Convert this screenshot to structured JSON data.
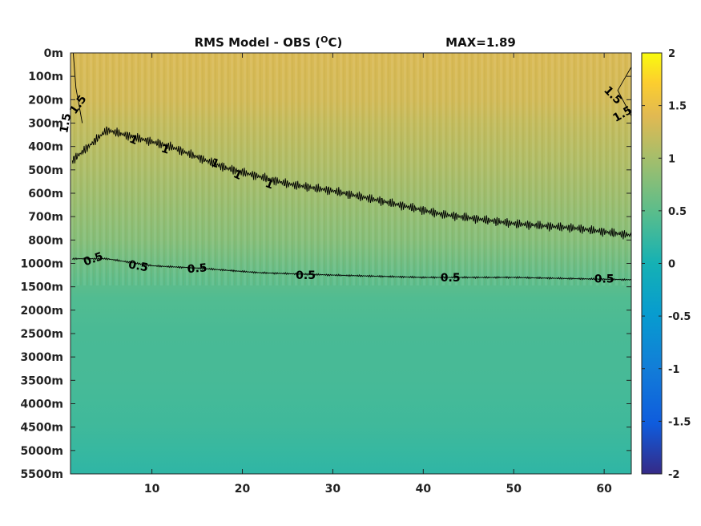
{
  "chart_data": {
    "type": "heatmap",
    "title": "RMS Model - OBS (",
    "title_sup": "O",
    "title_unit": "C)",
    "max_label": "MAX=1.89",
    "x_ticks": [
      {
        "value": 10,
        "label": "10"
      },
      {
        "value": 20,
        "label": "20"
      },
      {
        "value": 30,
        "label": "30"
      },
      {
        "value": 40,
        "label": "40"
      },
      {
        "value": 50,
        "label": "50"
      },
      {
        "value": 60,
        "label": "60"
      }
    ],
    "xlim": [
      1,
      63
    ],
    "y_levels": [
      "0m",
      "100m",
      "200m",
      "300m",
      "400m",
      "500m",
      "600m",
      "700m",
      "800m",
      "1000m",
      "1500m",
      "2000m",
      "2500m",
      "3000m",
      "3500m",
      "4000m",
      "4500m",
      "5000m",
      "5500m"
    ],
    "colorbar": {
      "min": -2,
      "max": 2,
      "ticks": [
        {
          "value": 2,
          "label": "2"
        },
        {
          "value": 1.5,
          "label": "1.5"
        },
        {
          "value": 1,
          "label": "1"
        },
        {
          "value": 0.5,
          "label": "0.5"
        },
        {
          "value": 0,
          "label": "0"
        },
        {
          "value": -0.5,
          "label": "-0.5"
        },
        {
          "value": -1,
          "label": "-1"
        },
        {
          "value": -1.5,
          "label": "-1.5"
        },
        {
          "value": -2,
          "label": "-2"
        }
      ]
    },
    "field_profile": [
      {
        "level": 0,
        "value": 1.35
      },
      {
        "level": 2,
        "value": 1.3
      },
      {
        "level": 3,
        "value": 1.2
      },
      {
        "level": 5,
        "value": 1.05
      },
      {
        "level": 8,
        "value": 0.78
      },
      {
        "level": 9.5,
        "value": 0.55
      },
      {
        "level": 10.5,
        "value": 0.42
      },
      {
        "level": 12,
        "value": 0.37
      },
      {
        "level": 14,
        "value": 0.35
      },
      {
        "level": 16,
        "value": 0.3
      },
      {
        "level": 18,
        "value": 0.18
      }
    ],
    "contours": [
      {
        "value": 1,
        "points": [
          [
            1.2,
            4.6
          ],
          [
            3,
            4.0
          ],
          [
            5,
            3.3
          ],
          [
            8,
            3.6
          ],
          [
            12,
            4.0
          ],
          [
            18,
            4.9
          ],
          [
            25,
            5.6
          ],
          [
            30,
            5.9
          ],
          [
            35,
            6.3
          ],
          [
            42,
            6.9
          ],
          [
            50,
            7.3
          ],
          [
            57,
            7.5
          ],
          [
            63,
            7.8
          ]
        ],
        "labels": [
          {
            "x": 8,
            "y": 3.7,
            "angle": 22,
            "text": "1"
          },
          {
            "x": 11.5,
            "y": 4.1,
            "angle": 18,
            "text": "1"
          },
          {
            "x": 17,
            "y": 4.7,
            "angle": 20,
            "text": "1"
          },
          {
            "x": 19.5,
            "y": 5.2,
            "angle": 25,
            "text": "1"
          },
          {
            "x": 23,
            "y": 5.6,
            "angle": 20,
            "text": "1"
          }
        ]
      },
      {
        "value": 0.5,
        "points": [
          [
            1.2,
            8.8
          ],
          [
            5,
            8.8
          ],
          [
            10,
            9.1
          ],
          [
            15,
            9.2
          ],
          [
            22,
            9.4
          ],
          [
            30,
            9.5
          ],
          [
            40,
            9.6
          ],
          [
            50,
            9.6
          ],
          [
            63,
            9.7
          ]
        ],
        "labels": [
          {
            "x": 3.5,
            "y": 8.8,
            "angle": -20,
            "text": "0.5"
          },
          {
            "x": 8.5,
            "y": 9.1,
            "angle": 10,
            "text": "0.5"
          },
          {
            "x": 15,
            "y": 9.2,
            "angle": -5,
            "text": "0.5"
          },
          {
            "x": 27,
            "y": 9.5,
            "angle": 0,
            "text": "0.5"
          },
          {
            "x": 43,
            "y": 9.6,
            "angle": 0,
            "text": "0.5"
          },
          {
            "x": 60,
            "y": 9.65,
            "angle": 0,
            "text": "0.5"
          }
        ]
      },
      {
        "value": 1.5,
        "points": [
          [
            1.3,
            0.0
          ],
          [
            1.6,
            1.5
          ],
          [
            2.3,
            3.0
          ]
        ],
        "labels": [
          {
            "x": 1.8,
            "y": 2.2,
            "angle": -55,
            "text": "1.5"
          },
          {
            "x": 0.4,
            "y": 3.0,
            "angle": -80,
            "text": "1.5"
          }
        ]
      },
      {
        "value": 1.5,
        "points": [
          [
            63,
            0.6
          ],
          [
            61.5,
            1.6
          ],
          [
            63,
            2.7
          ]
        ],
        "labels": [
          {
            "x": 61,
            "y": 1.8,
            "angle": 45,
            "text": "1.5"
          },
          {
            "x": 62,
            "y": 2.6,
            "angle": -30,
            "text": "1.5"
          }
        ]
      }
    ]
  }
}
